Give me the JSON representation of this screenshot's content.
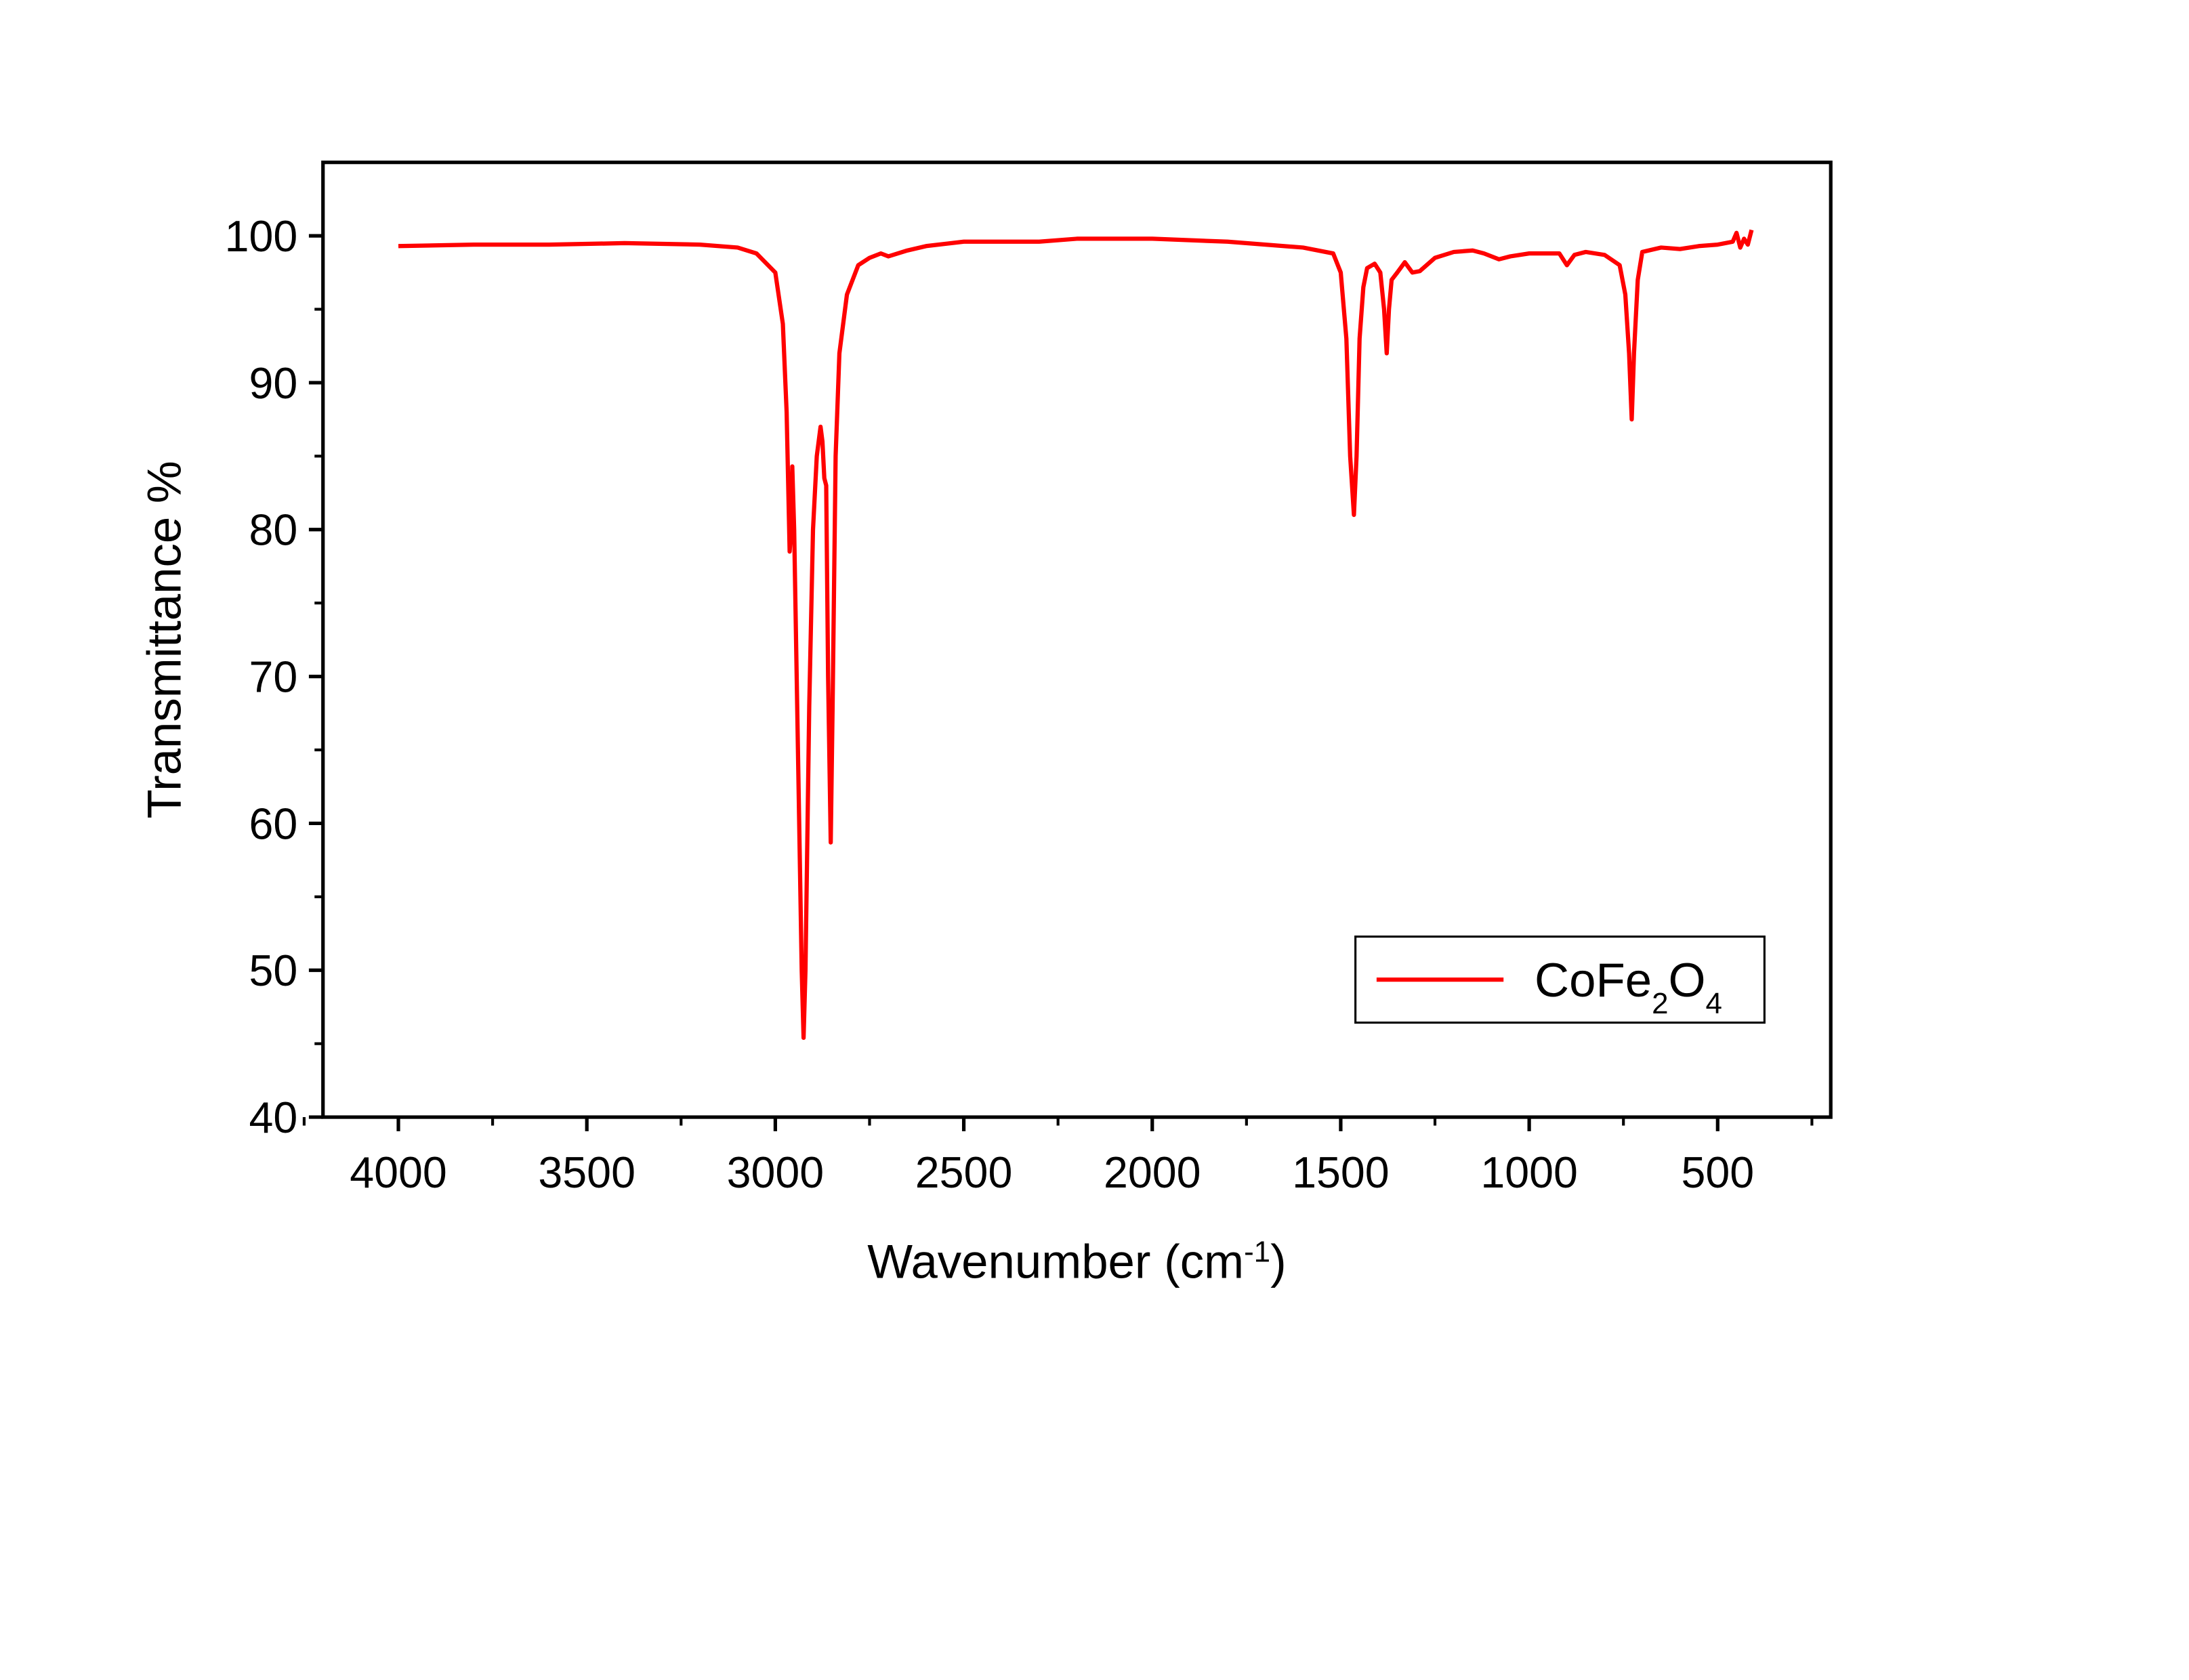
{
  "chart_data": {
    "type": "line",
    "x_label": "Wavenumber (cm-1)",
    "y_label": "Transmittance %",
    "x": [
      4000,
      3800,
      3600,
      3400,
      3200,
      3100,
      3050,
      3000,
      2980,
      2970,
      2962,
      2958,
      2955,
      2950,
      2940,
      2930,
      2925,
      2920,
      2910,
      2900,
      2890,
      2880,
      2875,
      2870,
      2865,
      2860,
      2853,
      2848,
      2840,
      2830,
      2810,
      2780,
      2750,
      2720,
      2700,
      2650,
      2600,
      2500,
      2300,
      2200,
      2000,
      1800,
      1600,
      1520,
      1500,
      1485,
      1475,
      1465,
      1458,
      1450,
      1440,
      1430,
      1410,
      1395,
      1385,
      1378,
      1372,
      1365,
      1350,
      1330,
      1310,
      1290,
      1250,
      1200,
      1150,
      1120,
      1080,
      1050,
      1000,
      920,
      900,
      880,
      850,
      800,
      760,
      745,
      735,
      728,
      722,
      712,
      700,
      650,
      600,
      550,
      500,
      460,
      450,
      440,
      430,
      420,
      410
    ],
    "series": [
      {
        "name": "CoFe2O4",
        "color": "#ff0000",
        "values": [
          99.3,
          99.4,
          99.4,
          99.5,
          99.4,
          99.2,
          98.8,
          97.5,
          94,
          88,
          78.5,
          80,
          84.3,
          80,
          65,
          50,
          45.4,
          50,
          68,
          80,
          85,
          87,
          86,
          83.5,
          83,
          70,
          58.7,
          68,
          85,
          92,
          96,
          98,
          98.5,
          98.8,
          98.6,
          99,
          99.3,
          99.6,
          99.6,
          99.8,
          99.8,
          99.6,
          99.2,
          98.8,
          97.5,
          93,
          85,
          81,
          85,
          93,
          96.5,
          97.8,
          98.1,
          97.5,
          95,
          92,
          95,
          97,
          97.5,
          98.2,
          97.5,
          97.6,
          98.5,
          98.9,
          99,
          98.8,
          98.4,
          98.6,
          98.8,
          98.8,
          98,
          98.7,
          98.9,
          98.7,
          98,
          96,
          92,
          87.5,
          92,
          97,
          98.9,
          99.2,
          99.1,
          99.3,
          99.4,
          99.6,
          100.2,
          99.2,
          99.8,
          99.4,
          100.4
        ]
      }
    ],
    "xlim": [
      4200,
      200
    ],
    "ylim": [
      40,
      105
    ],
    "xticks": [
      4000,
      3500,
      3000,
      2500,
      2000,
      1500,
      1000,
      500
    ],
    "yticks": [
      40,
      50,
      60,
      70,
      80,
      90,
      100
    ],
    "xminorticks": [
      4250,
      3750,
      3250,
      2750,
      2250,
      1750,
      1250,
      750,
      250
    ],
    "yminorticks": [
      45,
      55,
      65,
      75,
      85,
      95
    ],
    "legend": "lower right"
  }
}
